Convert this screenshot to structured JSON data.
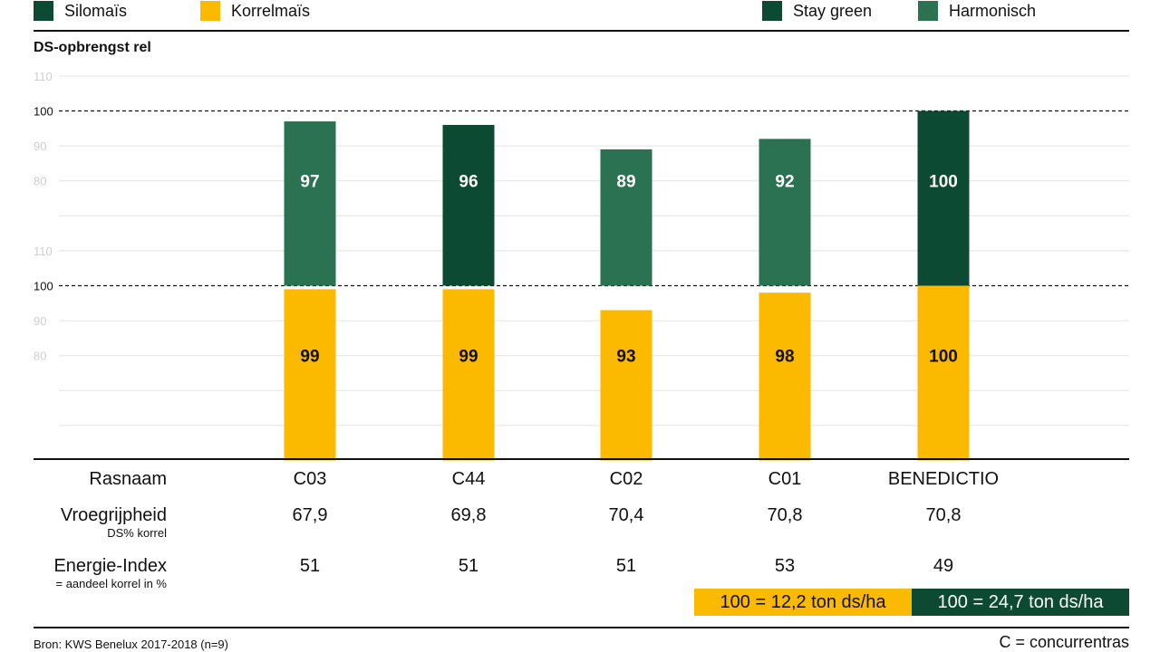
{
  "colors": {
    "silomais": "#0c4a33",
    "korrelmais": "#fbb900",
    "stay_green": "#0c4a33",
    "harmonisch": "#2a7252",
    "gridline": "#e4e4e4",
    "ticktext": "#cfcfcf"
  },
  "legend": {
    "silomais": "Silomaïs",
    "korrelmais": "Korrelmaïs",
    "stay_green": "Stay green",
    "harmonisch": "Harmonisch"
  },
  "chart_data": {
    "type": "bar",
    "ylabel": "DS-opbrengst rel",
    "panels": [
      {
        "name": "Silomaïs",
        "yticks": [
          80,
          90,
          100,
          110
        ],
        "reference_line": 100,
        "ylim": [
          50,
          110
        ],
        "categories": [
          "C03",
          "C44",
          "C02",
          "C01",
          "BENEDICTIO"
        ],
        "values": [
          97,
          96,
          89,
          92,
          100
        ],
        "types": [
          "Harmonisch",
          "Stay green",
          "Harmonisch",
          "Harmonisch",
          "Stay green"
        ]
      },
      {
        "name": "Korrelmaïs",
        "yticks": [
          80,
          90,
          100,
          110
        ],
        "reference_line": 100,
        "ylim": [
          50,
          110
        ],
        "categories": [
          "C03",
          "C44",
          "C02",
          "C01",
          "BENEDICTIO"
        ],
        "values": [
          99,
          99,
          93,
          98,
          100
        ]
      }
    ]
  },
  "table": {
    "rows": [
      {
        "label": "Rasnaam",
        "sub": "",
        "values": [
          "C03",
          "C44",
          "C02",
          "C01",
          "BENEDICTIO"
        ]
      },
      {
        "label": "Vroegrijpheid",
        "sub": "DS% korrel",
        "values": [
          "67,9",
          "69,8",
          "70,4",
          "70,8",
          "70,8"
        ]
      },
      {
        "label": "Energie-Index",
        "sub": "= aandeel korrel in %",
        "values": [
          "51",
          "51",
          "51",
          "53",
          "49"
        ]
      }
    ]
  },
  "reference_boxes": {
    "korrel": "100 = 12,2 ton ds/ha",
    "silo": "100 = 24,7 ton ds/ha"
  },
  "footer": {
    "source": "Bron: KWS Benelux 2017-2018 (n=9)",
    "note": "C = concurrentras"
  }
}
